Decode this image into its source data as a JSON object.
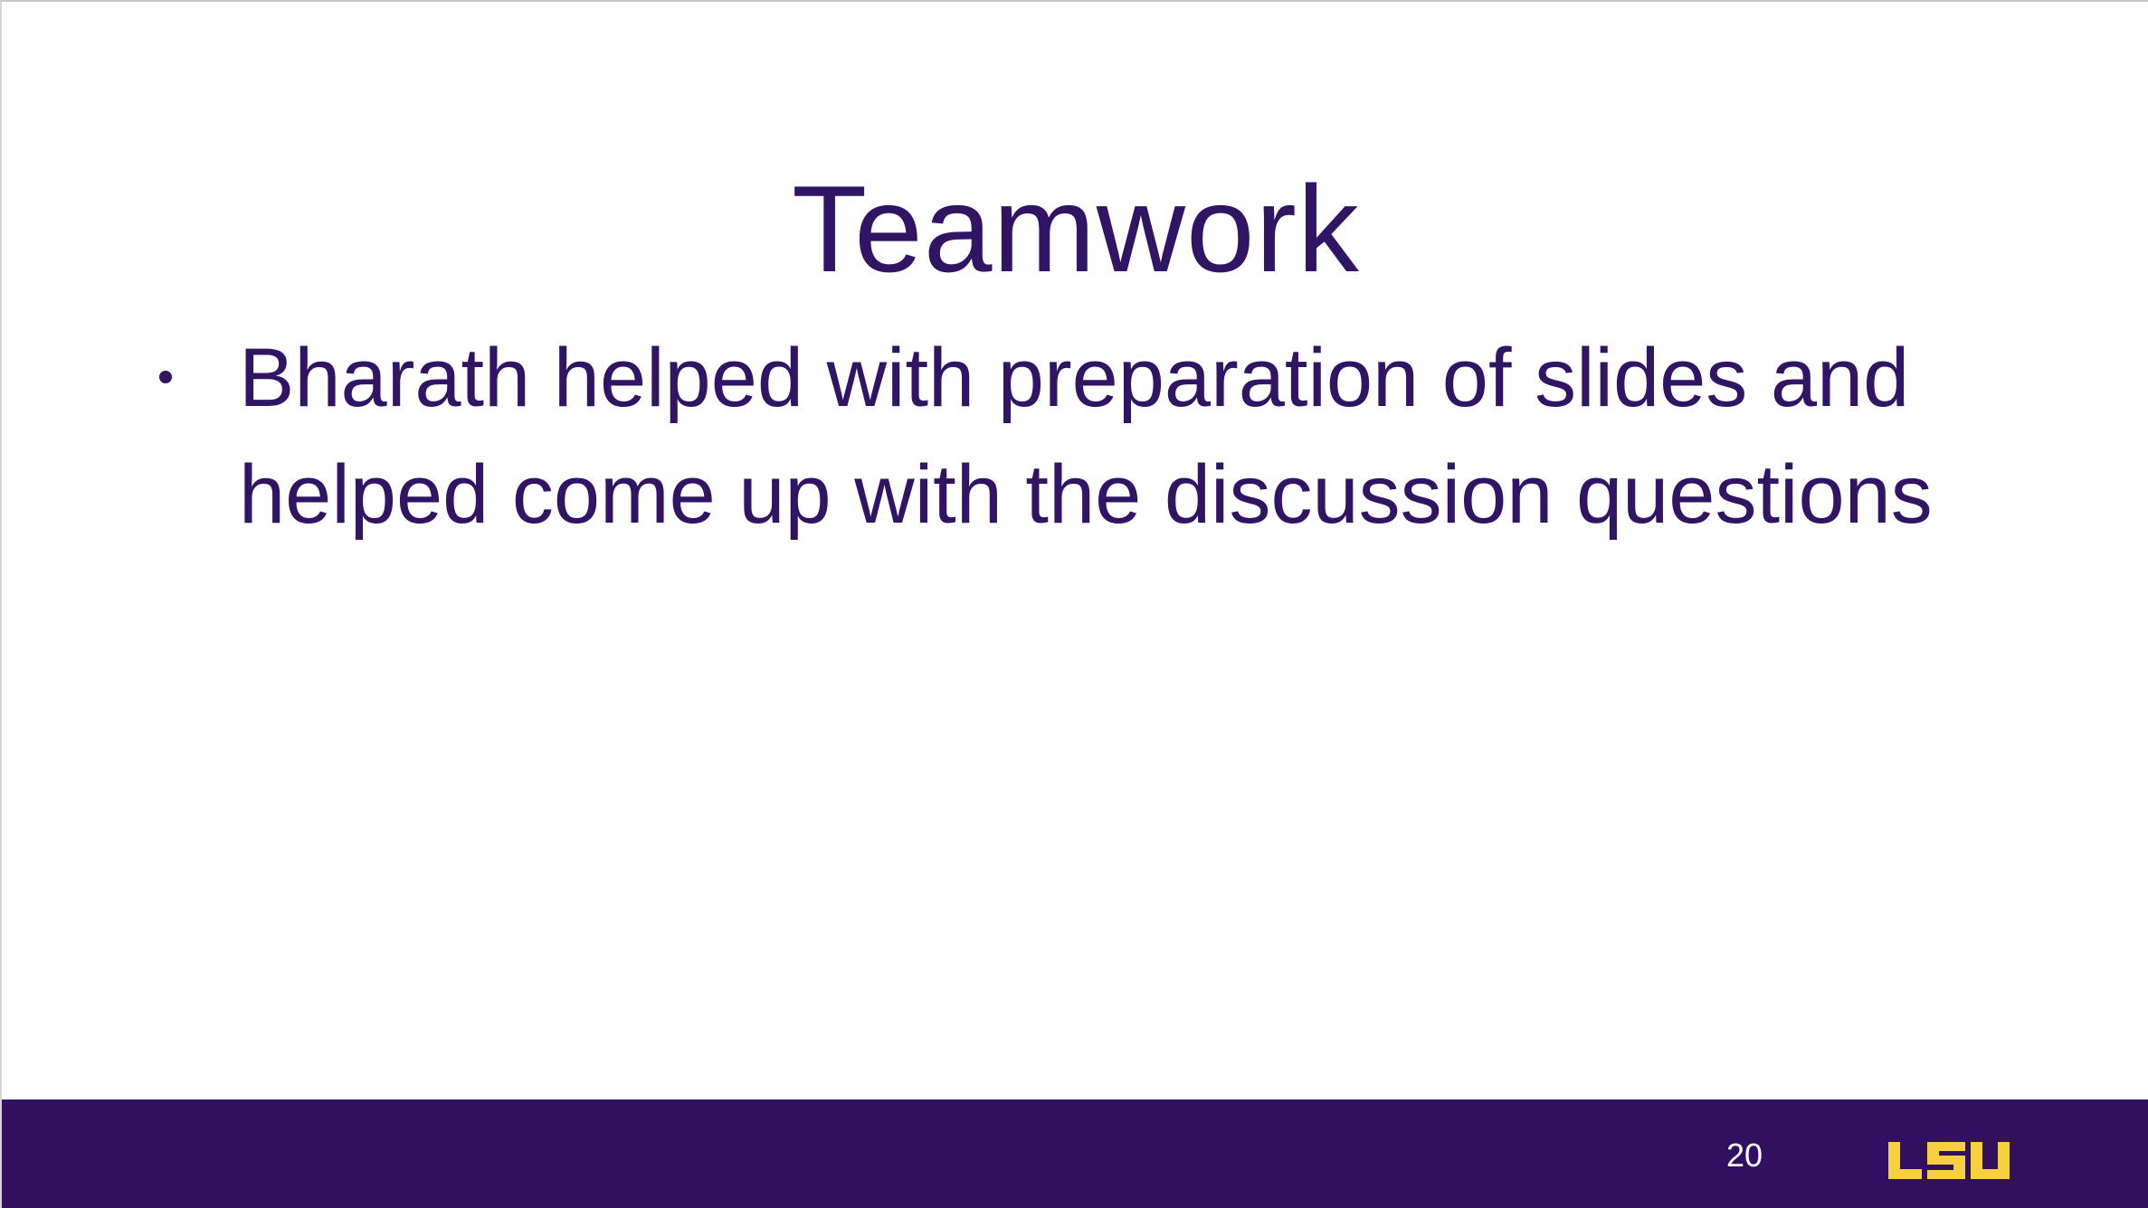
{
  "slide": {
    "title": "Teamwork",
    "bullets": [
      "Bharath helped with preparation of slides and helped come up with the discussion questions"
    ],
    "page_number": "20",
    "logo_text": "LSU"
  },
  "colors": {
    "title_text": "#311464",
    "footer_bar": "#311060",
    "logo_gold": "#F6D03F",
    "page_number_text": "#FFFFFF"
  }
}
